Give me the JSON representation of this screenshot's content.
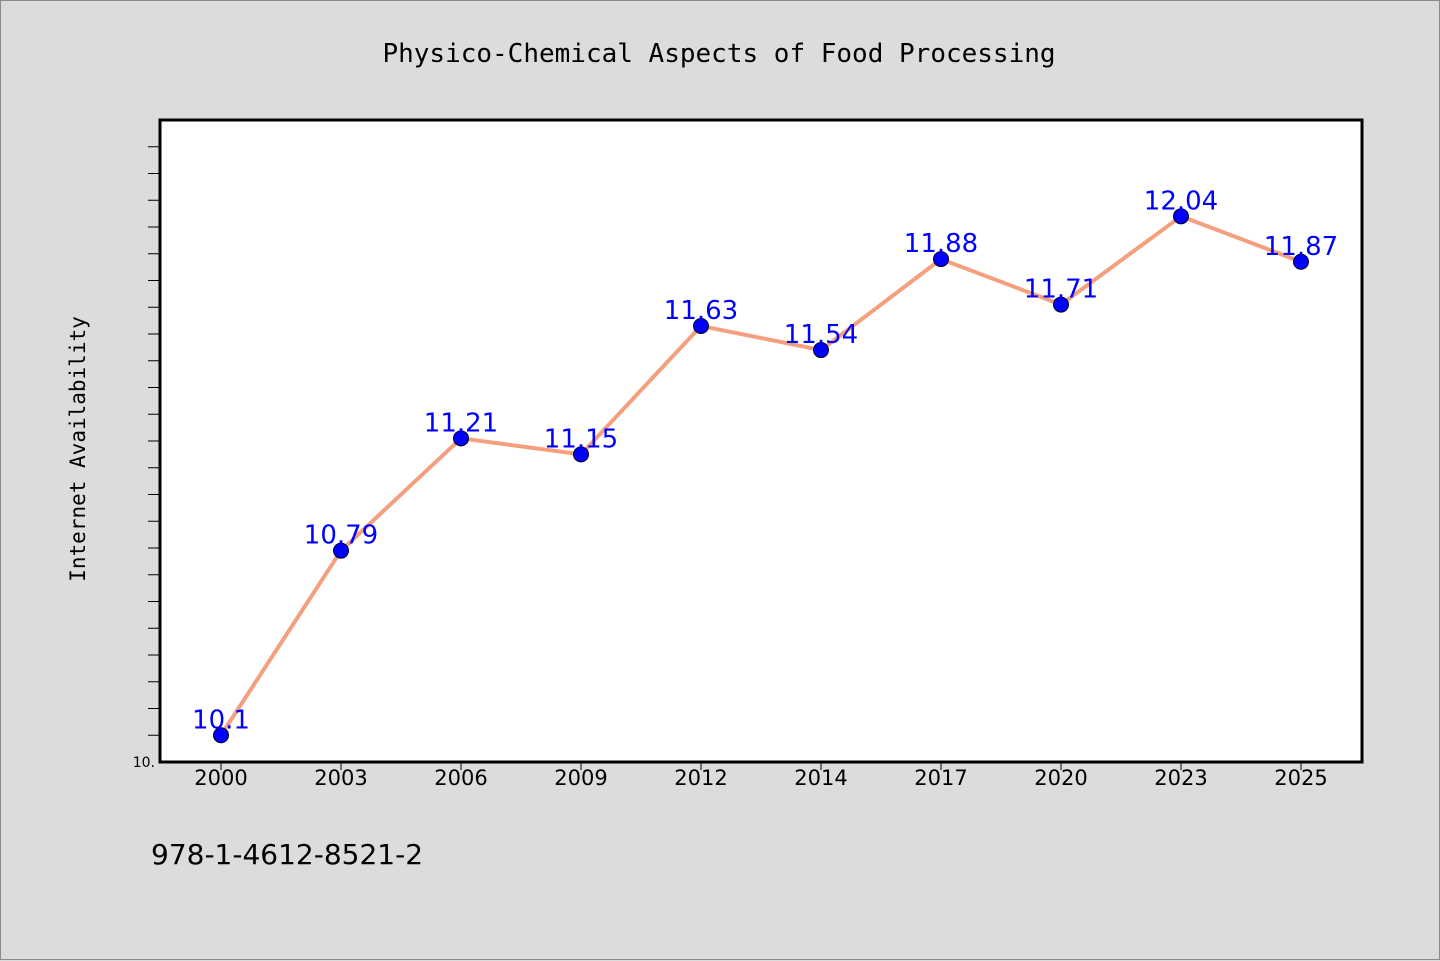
{
  "chart_data": {
    "type": "line",
    "title": "Physico-Chemical Aspects of Food Processing",
    "xlabel": "",
    "ylabel": "Internet Availability",
    "categories": [
      "2000",
      "2003",
      "2006",
      "2009",
      "2012",
      "2014",
      "2017",
      "2020",
      "2023",
      "2025"
    ],
    "values": [
      10.1,
      10.79,
      11.21,
      11.15,
      11.63,
      11.54,
      11.88,
      11.71,
      12.04,
      11.87
    ],
    "data_labels": [
      "10.1",
      "10.79",
      "11.21",
      "11.15",
      "11.63",
      "11.54",
      "11.88",
      "11.71",
      "12.04",
      "11.87"
    ],
    "ylim": [
      10.0,
      12.4
    ],
    "ytick_label": "10.",
    "grid": false,
    "legend": "none",
    "colors": {
      "line": "#f4a07e",
      "marker": "#0000ff",
      "data_label": "#0000ff",
      "plot_background": "#ffffff",
      "page_background": "#dcdcdc"
    }
  },
  "footer": {
    "isbn": "978-1-4612-8521-2"
  }
}
